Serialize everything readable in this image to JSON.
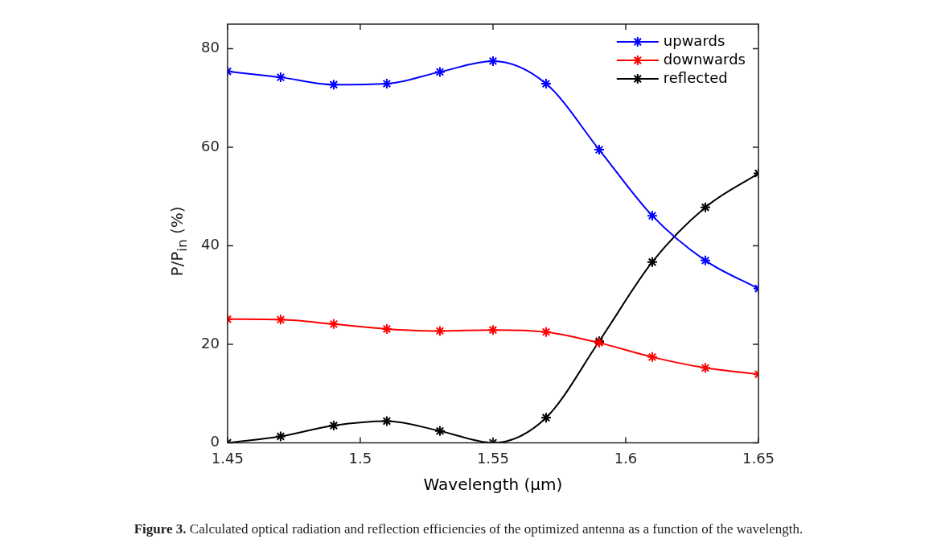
{
  "chart_data": {
    "type": "line",
    "xlabel": "Wavelength (μm)",
    "ylabel": "P/P$_{in}$ (%)",
    "x": [
      1.45,
      1.47,
      1.49,
      1.51,
      1.53,
      1.55,
      1.57,
      1.59,
      1.61,
      1.63,
      1.65
    ],
    "series": [
      {
        "name": "upwards",
        "color": "#0000ff",
        "values": [
          75.4,
          74.2,
          72.7,
          72.9,
          75.3,
          77.5,
          72.9,
          59.5,
          46.1,
          37.0,
          31.3
        ]
      },
      {
        "name": "downwards",
        "color": "#ff0000",
        "values": [
          25.1,
          25.0,
          24.1,
          23.1,
          22.7,
          22.9,
          22.5,
          20.3,
          17.4,
          15.2,
          13.9
        ]
      },
      {
        "name": "reflected",
        "color": "#000000",
        "values": [
          0,
          1.3,
          3.5,
          4.4,
          2.4,
          0,
          5.1,
          20.6,
          36.7,
          47.8,
          54.7
        ]
      }
    ],
    "xlim": [
      1.45,
      1.65
    ],
    "xticks": [
      1.45,
      1.5,
      1.55,
      1.6,
      1.65
    ],
    "ylim": [
      0,
      85
    ],
    "yticks": [
      0,
      20,
      40,
      60,
      80
    ],
    "grid": false,
    "legend": "top right",
    "marker": "cross",
    "line_style": "solid",
    "annotations": [
      "Figure 3. Calculated optical radiation and reflection efficiencies of the optimized antenna as a function of the wavelength."
    ]
  }
}
